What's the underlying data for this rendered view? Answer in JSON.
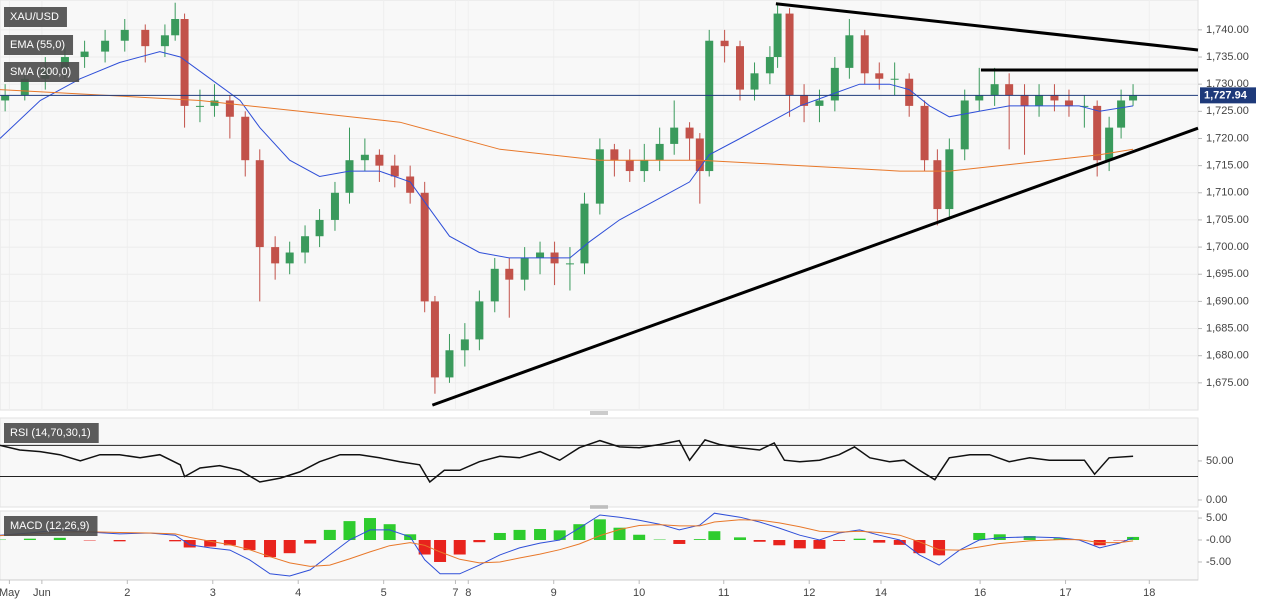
{
  "chart_data": {
    "type": "candlestick",
    "title": "XAU/USD",
    "xlim": [
      0.51,
      14.53
    ],
    "xticks": [
      {
        "value": 0.62,
        "label": "May"
      },
      {
        "value": 1,
        "label": "Jun"
      },
      2,
      3,
      4,
      5,
      {
        "value": 5.84,
        "label": "7"
      },
      {
        "value": 5.99,
        "label": "8"
      },
      {
        "value": 6.99,
        "label": "9"
      },
      {
        "value": 7.99,
        "label": "10"
      },
      {
        "value": 8.98,
        "label": "11"
      },
      {
        "value": 9.98,
        "label": "12"
      },
      {
        "value": 10.82,
        "label": "14"
      },
      {
        "value": 11.98,
        "label": "16"
      },
      {
        "value": 12.98,
        "label": "17"
      },
      {
        "value": 13.96,
        "label": "18"
      }
    ],
    "ylim": [
      1670,
      1745.5
    ],
    "yticks": [
      {
        "value": 1675,
        "label": "1,675.00"
      },
      {
        "value": 1680,
        "label": "1,680.00"
      },
      {
        "value": 1685,
        "label": "1,685.00"
      },
      {
        "value": 1690,
        "label": "1,690.00"
      },
      {
        "value": 1695,
        "label": "1,695.00"
      },
      {
        "value": 1700,
        "label": "1,700.00"
      },
      {
        "value": 1705,
        "label": "1,705.00"
      },
      {
        "value": 1710,
        "label": "1,710.00"
      },
      {
        "value": 1715,
        "label": "1,715.00"
      },
      {
        "value": 1720,
        "label": "1,720.00"
      },
      {
        "value": 1725,
        "label": "1,725.00"
      },
      {
        "value": 1730,
        "label": "1,730.00"
      },
      {
        "value": 1735,
        "label": "1,735.00"
      },
      {
        "value": 1740,
        "label": "1,740.00"
      }
    ],
    "grid": true,
    "up_color": "#3a9a5c",
    "down_color": "#c2524a",
    "candles": [
      [
        0.57,
        1727,
        1730,
        1725,
        1728
      ],
      [
        0.8,
        1728,
        1733,
        1727,
        1731
      ],
      [
        1.04,
        1731,
        1735,
        1729,
        1733
      ],
      [
        1.27,
        1733,
        1737,
        1731,
        1735
      ],
      [
        1.5,
        1735,
        1738,
        1733,
        1736
      ],
      [
        1.74,
        1736,
        1740,
        1734,
        1738
      ],
      [
        1.97,
        1738,
        1742,
        1736,
        1740
      ],
      [
        2.21,
        1740,
        1741,
        1734,
        1737
      ],
      [
        2.44,
        1737,
        1741,
        1735,
        1739
      ],
      [
        2.56,
        1739,
        1745,
        1738,
        1742
      ],
      [
        2.67,
        1742,
        1743,
        1722,
        1726
      ],
      [
        2.85,
        1726,
        1729,
        1723,
        1726
      ],
      [
        3.02,
        1726,
        1730,
        1724,
        1727
      ],
      [
        3.2,
        1727,
        1728,
        1720,
        1724
      ],
      [
        3.38,
        1724,
        1725,
        1713,
        1716
      ],
      [
        3.55,
        1716,
        1718,
        1690,
        1700
      ],
      [
        3.73,
        1700,
        1702,
        1694,
        1697
      ],
      [
        3.9,
        1697,
        1701,
        1695,
        1699
      ],
      [
        4.08,
        1699,
        1704,
        1697,
        1702
      ],
      [
        4.25,
        1702,
        1707,
        1700,
        1705
      ],
      [
        4.43,
        1705,
        1712,
        1703,
        1710
      ],
      [
        4.6,
        1710,
        1722,
        1708,
        1716
      ],
      [
        4.78,
        1716,
        1720,
        1714,
        1717
      ],
      [
        4.95,
        1717,
        1718,
        1712,
        1715
      ],
      [
        5.13,
        1715,
        1717,
        1711,
        1713
      ],
      [
        5.31,
        1713,
        1715,
        1708,
        1710
      ],
      [
        5.48,
        1710,
        1712,
        1688,
        1690
      ],
      [
        5.6,
        1690,
        1691,
        1673,
        1676
      ],
      [
        5.77,
        1676,
        1684,
        1675,
        1681
      ],
      [
        5.95,
        1681,
        1686,
        1678,
        1683
      ],
      [
        6.12,
        1683,
        1692,
        1681,
        1690
      ],
      [
        6.3,
        1690,
        1698,
        1688,
        1696
      ],
      [
        6.47,
        1696,
        1698,
        1687,
        1694
      ],
      [
        6.65,
        1694,
        1700,
        1692,
        1698
      ],
      [
        6.83,
        1698,
        1701,
        1695,
        1699
      ],
      [
        7.0,
        1699,
        1701,
        1693,
        1697
      ],
      [
        7.18,
        1697,
        1700,
        1692,
        1697
      ],
      [
        7.35,
        1697,
        1710,
        1695,
        1708
      ],
      [
        7.53,
        1708,
        1720,
        1706,
        1718
      ],
      [
        7.7,
        1718,
        1719,
        1713,
        1716
      ],
      [
        7.88,
        1716,
        1718,
        1712,
        1714
      ],
      [
        8.05,
        1714,
        1719,
        1712,
        1716
      ],
      [
        8.23,
        1716,
        1722,
        1714,
        1719
      ],
      [
        8.4,
        1719,
        1727,
        1717,
        1722
      ],
      [
        8.58,
        1722,
        1723,
        1716,
        1720
      ],
      [
        8.7,
        1720,
        1721,
        1708,
        1714
      ],
      [
        8.81,
        1714,
        1740,
        1713,
        1738
      ],
      [
        8.99,
        1738,
        1740,
        1734,
        1737
      ],
      [
        9.17,
        1737,
        1738,
        1727,
        1729
      ],
      [
        9.34,
        1729,
        1734,
        1727,
        1732
      ],
      [
        9.52,
        1732,
        1737,
        1730,
        1735
      ],
      [
        9.61,
        1735,
        1745,
        1733,
        1743
      ],
      [
        9.75,
        1743,
        1744,
        1724,
        1728
      ],
      [
        9.92,
        1728,
        1730,
        1723,
        1726
      ],
      [
        10.1,
        1726,
        1729,
        1723,
        1727
      ],
      [
        10.28,
        1727,
        1735,
        1725,
        1733
      ],
      [
        10.45,
        1733,
        1742,
        1731,
        1739
      ],
      [
        10.63,
        1739,
        1740,
        1730,
        1732
      ],
      [
        10.8,
        1732,
        1734,
        1729,
        1731
      ],
      [
        10.98,
        1731,
        1734,
        1728,
        1731
      ],
      [
        11.15,
        1731,
        1732,
        1724,
        1726
      ],
      [
        11.33,
        1726,
        1727,
        1714,
        1716
      ],
      [
        11.48,
        1716,
        1718,
        1704,
        1707
      ],
      [
        11.62,
        1707,
        1720,
        1705,
        1718
      ],
      [
        11.8,
        1718,
        1729,
        1716,
        1727
      ],
      [
        11.97,
        1727,
        1733,
        1725,
        1728
      ],
      [
        12.15,
        1728,
        1733,
        1726,
        1730
      ],
      [
        12.32,
        1730,
        1732,
        1718,
        1728
      ],
      [
        12.5,
        1728,
        1730,
        1717,
        1726
      ],
      [
        12.67,
        1726,
        1730,
        1724,
        1728
      ],
      [
        12.85,
        1728,
        1730,
        1725,
        1727
      ],
      [
        13.02,
        1727,
        1729,
        1724,
        1726
      ],
      [
        13.2,
        1726,
        1728,
        1722,
        1726
      ],
      [
        13.35,
        1726,
        1727,
        1713,
        1716
      ],
      [
        13.49,
        1716,
        1724,
        1714,
        1722
      ],
      [
        13.63,
        1722,
        1729,
        1720,
        1727
      ],
      [
        13.77,
        1727,
        1730,
        1726,
        1728
      ]
    ],
    "series": [
      {
        "name": "EMA (55,0)",
        "color": "#2f4fd8",
        "x": [
          0.51,
          0.98,
          1.45,
          1.91,
          2.38,
          2.62,
          2.97,
          3.32,
          3.55,
          3.9,
          4.25,
          4.6,
          4.95,
          5.31,
          5.54,
          5.77,
          6.12,
          6.47,
          6.83,
          7.18,
          7.41,
          7.76,
          8.23,
          8.58,
          8.81,
          9.17,
          9.52,
          9.87,
          10.22,
          10.57,
          10.92,
          11.15,
          11.39,
          11.62,
          11.97,
          12.32,
          12.79,
          13.14,
          13.38,
          13.77
        ],
        "values": [
          1720,
          1727,
          1731,
          1734,
          1736,
          1735,
          1731,
          1727,
          1722,
          1716,
          1713,
          1714,
          1714,
          1712,
          1707,
          1702,
          1699,
          1698,
          1698,
          1698,
          1701,
          1705,
          1709,
          1712,
          1717,
          1720,
          1723,
          1726,
          1728,
          1730,
          1730,
          1729,
          1726,
          1724,
          1725,
          1726,
          1726,
          1726,
          1725,
          1726
        ]
      },
      {
        "name": "SMA (200,0)",
        "color": "#e8782a",
        "x": [
          0.51,
          1.68,
          2.85,
          4.02,
          5.19,
          6.36,
          7.53,
          8.7,
          9.87,
          11.04,
          11.62,
          12.21,
          12.79,
          13.38,
          13.77
        ],
        "values": [
          1729,
          1728,
          1727,
          1725,
          1723,
          1718,
          1716,
          1716,
          1715,
          1714,
          1714,
          1715,
          1716,
          1717,
          1718
        ]
      }
    ],
    "trendlines": [
      {
        "x": [
          5.57,
          14.53
        ],
        "y": [
          1670.9,
          1721.9
        ]
      },
      {
        "x": [
          9.59,
          14.53
        ],
        "y": [
          1744.8,
          1736.3
        ]
      },
      {
        "x": [
          11.99,
          14.53
        ],
        "y": [
          1732.6,
          1732.6
        ]
      }
    ],
    "last_price": {
      "value": 1727.94,
      "label": "1,727.94"
    },
    "rsi": {
      "name": "RSI (14,70,30,1)",
      "color": "#111111",
      "ylim": [
        -9,
        105
      ],
      "yticks": [
        {
          "value": 50,
          "label": "50.00"
        },
        {
          "value": 0,
          "label": "0.00"
        }
      ],
      "levels": [
        70,
        30
      ],
      "x": [
        0.51,
        0.74,
        0.98,
        1.21,
        1.45,
        1.68,
        1.91,
        2.15,
        2.38,
        2.62,
        2.67,
        2.85,
        3.08,
        3.32,
        3.55,
        3.79,
        4.02,
        4.25,
        4.49,
        4.72,
        4.95,
        5.19,
        5.42,
        5.54,
        5.71,
        5.89,
        6.12,
        6.36,
        6.59,
        6.83,
        7.06,
        7.29,
        7.53,
        7.76,
        7.99,
        8.23,
        8.46,
        8.58,
        8.76,
        8.93,
        9.17,
        9.4,
        9.57,
        9.69,
        9.87,
        10.1,
        10.33,
        10.51,
        10.69,
        10.92,
        11.09,
        11.27,
        11.45,
        11.62,
        11.86,
        12.09,
        12.32,
        12.56,
        12.79,
        13.02,
        13.2,
        13.32,
        13.49,
        13.77
      ],
      "values": [
        70,
        64,
        62,
        58,
        50,
        58,
        58,
        54,
        58,
        45,
        30,
        41,
        44,
        38,
        23,
        28,
        36,
        49,
        58,
        58,
        54,
        49,
        45,
        23,
        38,
        38,
        49,
        56,
        54,
        62,
        51,
        67,
        76,
        68,
        67,
        71,
        76,
        51,
        77,
        71,
        67,
        64,
        73,
        51,
        49,
        51,
        58,
        68,
        54,
        49,
        51,
        38,
        26,
        54,
        58,
        58,
        49,
        54,
        51,
        51,
        51,
        33,
        54,
        56
      ]
    },
    "macd": {
      "name": "MACD (12,26,9)",
      "ylim": [
        -9.1,
        6.6
      ],
      "yticks": [
        {
          "value": 5,
          "label": "5.00"
        },
        {
          "value": 0,
          "label": "-0.00"
        },
        {
          "value": -5,
          "label": "-5.00"
        }
      ],
      "x": [
        0.51,
        0.86,
        1.21,
        1.56,
        1.91,
        2.26,
        2.56,
        2.73,
        2.97,
        3.2,
        3.43,
        3.67,
        3.9,
        4.14,
        4.37,
        4.6,
        4.84,
        5.07,
        5.31,
        5.48,
        5.66,
        5.89,
        6.12,
        6.36,
        6.59,
        6.83,
        7.06,
        7.29,
        7.53,
        7.76,
        7.99,
        8.23,
        8.46,
        8.7,
        8.87,
        9.17,
        9.4,
        9.63,
        9.87,
        10.1,
        10.33,
        10.57,
        10.8,
        11.04,
        11.27,
        11.5,
        11.74,
        11.97,
        12.21,
        12.56,
        12.91,
        13.14,
        13.38,
        13.61,
        13.77
      ],
      "macd_color": "#2f4fd8",
      "signal_color": "#e8782a",
      "up_color": "#2ecc2e",
      "down_color": "#e8231d",
      "macd": [
        1.1,
        1.6,
        2.3,
        1.8,
        1.4,
        1.6,
        1.1,
        -1.1,
        -1.8,
        -2.3,
        -4.5,
        -7.7,
        -8.2,
        -6.8,
        -3.4,
        0,
        2.3,
        2.3,
        0.7,
        -4.5,
        -7.7,
        -7.7,
        -5.7,
        -3.4,
        -1.8,
        -0.7,
        0,
        2.7,
        5.7,
        5.2,
        4.5,
        3.6,
        2.3,
        3.4,
        6.1,
        5.2,
        4.1,
        2.7,
        1.1,
        0,
        1.6,
        2.3,
        1.1,
        0,
        -3.4,
        -5.7,
        -2.3,
        0,
        0.5,
        0.7,
        0.5,
        0,
        -1.8,
        -0.7,
        0.5
      ],
      "signal": [
        1.0,
        1.3,
        1.8,
        1.9,
        1.7,
        1.6,
        1.4,
        0.6,
        -0.3,
        -1.1,
        -2.2,
        -3.8,
        -5.2,
        -6.0,
        -5.7,
        -4.3,
        -2.7,
        -1.3,
        -0.6,
        -1.2,
        -2.7,
        -4.4,
        -5.2,
        -5.0,
        -4.1,
        -3.2,
        -2.2,
        -0.9,
        1.0,
        2.4,
        3.3,
        3.5,
        3.2,
        3.2,
        4.1,
        4.6,
        4.5,
        3.9,
        3.0,
        2.0,
        1.8,
        2.0,
        1.7,
        1.1,
        -0.4,
        -2.2,
        -2.3,
        -1.6,
        -0.8,
        -0.2,
        0.1,
        0.1,
        -0.6,
        -0.6,
        -0.2
      ],
      "histogram": [
        0.1,
        0.3,
        0.5,
        -0.1,
        -0.3,
        0,
        -0.3,
        -1.7,
        -1.5,
        -1.2,
        -2.3,
        -3.9,
        -3.0,
        -0.8,
        2.3,
        4.3,
        5.0,
        3.6,
        1.3,
        -3.3,
        -5.0,
        -3.3,
        -0.5,
        1.6,
        2.3,
        2.5,
        2.2,
        3.6,
        4.7,
        2.8,
        1.2,
        0.1,
        -0.9,
        0.2,
        2.0,
        0.6,
        -0.4,
        -1.2,
        -1.9,
        -2.0,
        -0.2,
        0.3,
        -0.6,
        -1.1,
        -3.0,
        -3.5,
        0,
        1.6,
        1.3,
        0.9,
        0.4,
        0,
        -1.2,
        -0.1,
        0.7
      ]
    }
  }
}
